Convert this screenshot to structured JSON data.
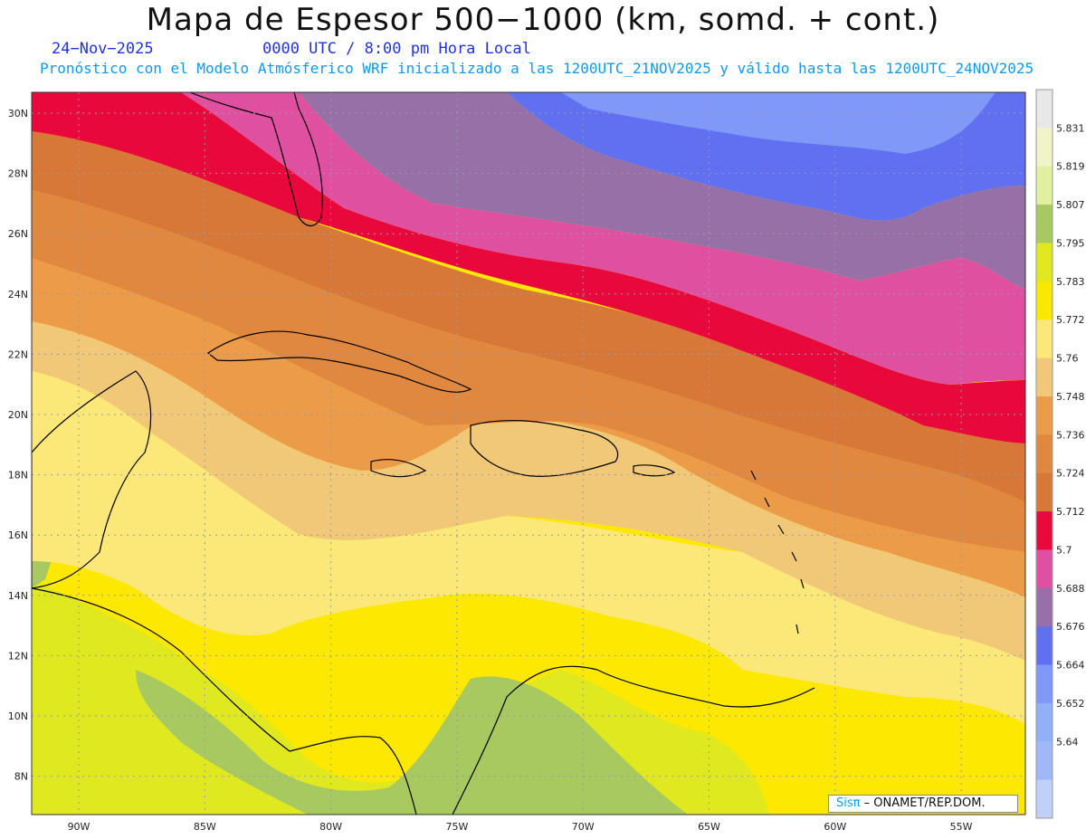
{
  "header": {
    "title": "Mapa de Espesor 500−1000 (km, somd. + cont.)",
    "date": "24−Nov−2025",
    "time": "0000 UTC / 8:00 pm Hora Local",
    "subtitle": "Pronóstico con el Modelo Atmósferico WRF inicializado a las 1200UTC_21NOV2025 y válido hasta las  1200UTC_24NOV2025"
  },
  "map": {
    "lat_labels": [
      "30N",
      "28N",
      "26N",
      "24N",
      "22N",
      "20N",
      "18N",
      "16N",
      "14N",
      "12N",
      "10N",
      "8N"
    ],
    "lon_labels": [
      "90W",
      "85W",
      "80W",
      "75W",
      "70W",
      "65W",
      "60W",
      "55W"
    ],
    "grid": true
  },
  "colorbar": {
    "labels": [
      "5.831",
      "5.819",
      "5.807",
      "5.795",
      "5.783",
      "5.772",
      "5.76",
      "5.748",
      "5.736",
      "5.724",
      "5.712",
      "5.7",
      "5.688",
      "5.676",
      "5.664",
      "5.652",
      "5.64"
    ],
    "colors": [
      "#e8e8e8",
      "#f0f4c8",
      "#e0f0a0",
      "#a8c860",
      "#e0e820",
      "#f8e800",
      "#fce878",
      "#f0c878",
      "#ec9c48",
      "#e08840",
      "#d87838",
      "#e8083c",
      "#e050a0",
      "#9870a8",
      "#6070f0",
      "#8098f8",
      "#90b0f8",
      "#a0b8f8",
      "#c0d0f8"
    ]
  },
  "credit": {
    "sis": "Sisπ",
    "rest": "– ONAMET/REP.DOM."
  }
}
